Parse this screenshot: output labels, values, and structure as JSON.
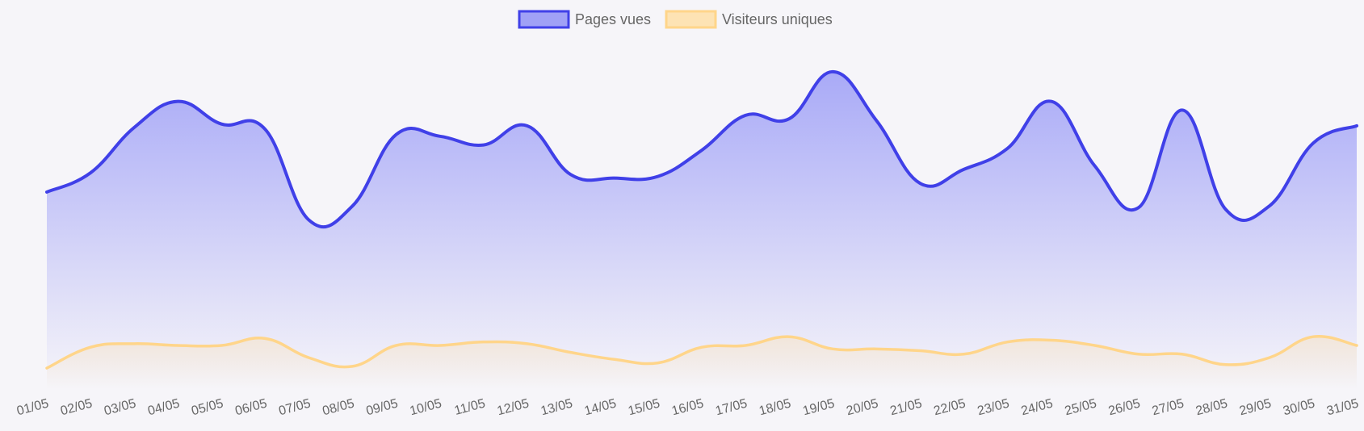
{
  "chart_data": {
    "type": "area",
    "title": "",
    "xlabel": "",
    "ylabel": "",
    "legend_position": "top-center",
    "grid": false,
    "y_axis_visible": false,
    "ylim": [
      0,
      200
    ],
    "categories": [
      "01/05",
      "02/05",
      "03/05",
      "04/05",
      "05/05",
      "06/05",
      "07/05",
      "08/05",
      "09/05",
      "10/05",
      "11/05",
      "12/05",
      "13/05",
      "14/05",
      "15/05",
      "16/05",
      "17/05",
      "18/05",
      "19/05",
      "20/05",
      "21/05",
      "22/05",
      "23/05",
      "24/05",
      "25/05",
      "26/05",
      "27/05",
      "28/05",
      "29/05",
      "30/05",
      "31/05"
    ],
    "series": [
      {
        "name": "Pages vues",
        "color": "#4040e8",
        "fill": "#a9aaf7",
        "values": [
          113,
          124,
          150,
          165,
          152,
          149,
          97,
          105,
          146,
          145,
          140,
          151,
          123,
          121,
          122,
          137,
          157,
          155,
          182,
          154,
          118,
          126,
          138,
          165,
          128,
          104,
          160,
          103,
          105,
          141,
          151
        ]
      },
      {
        "name": "Visiteurs uniques",
        "color": "#ffd58a",
        "fill": "#fde3b4",
        "values": [
          12,
          24,
          26,
          25,
          25,
          29,
          18,
          13,
          25,
          25,
          27,
          26,
          21,
          17,
          15,
          24,
          25,
          30,
          23,
          23,
          22,
          20,
          27,
          28,
          25,
          20,
          20,
          14,
          18,
          30,
          25
        ]
      }
    ]
  }
}
